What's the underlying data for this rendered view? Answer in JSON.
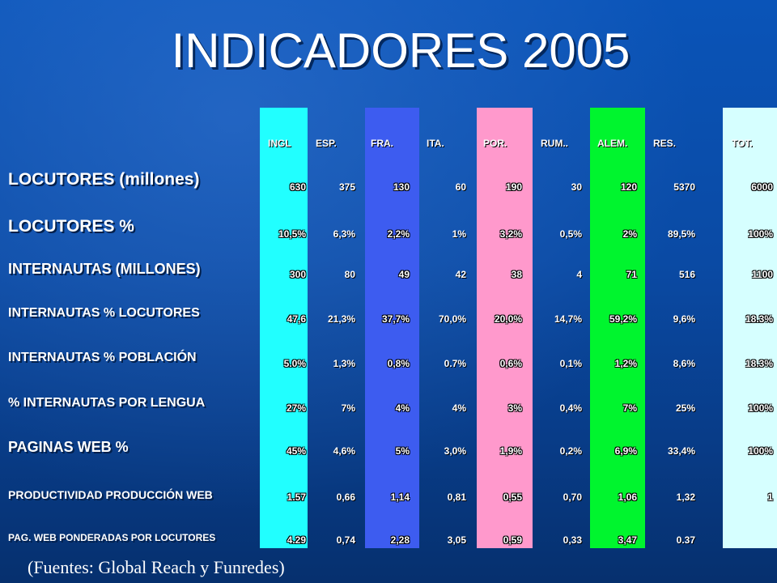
{
  "title": "INDICADORES 2005",
  "source": "(Fuentes: Global Reach y Funredes)",
  "colors": {
    "ingl": "#21ffff",
    "fra": "#3d5cf0",
    "por": "#ff99cc",
    "alem": "#00f52e",
    "tot": "#d6ffff"
  },
  "columns": [
    "INGL",
    "ESP.",
    "FRA.",
    "ITA.",
    "POR.",
    "RUM..",
    "ALEM.",
    "RES.",
    "TOT."
  ],
  "rows": [
    {
      "label": "LOCUTORES (millones)",
      "values": [
        "630",
        "375",
        "130",
        "60",
        "190",
        "30",
        "120",
        "5370",
        "6000"
      ]
    },
    {
      "label": "LOCUTORES %",
      "values": [
        "10,5%",
        "6,3%",
        "2,2%",
        "1%",
        "3,2%",
        "0,5%",
        "2%",
        "89,5%",
        "100%"
      ]
    },
    {
      "label": "INTERNAUTAS (MILLONES)",
      "values": [
        "300",
        "80",
        "49",
        "42",
        "38",
        "4",
        "71",
        "516",
        "1100"
      ]
    },
    {
      "label": "INTERNAUTAS % LOCUTORES",
      "values": [
        "47,6",
        "21,3%",
        "37,7%",
        "70,0%",
        "20,0%",
        "14,7%",
        "59,2%",
        "9,6%",
        "18.3%"
      ]
    },
    {
      "label": "INTERNAUTAS % POBLACIÓN",
      "values": [
        "5.0%",
        "1,3%",
        "0,8%",
        "0.7%",
        "0,6%",
        "0,1%",
        "1,2%",
        "8,6%",
        "18.3%"
      ]
    },
    {
      "label": "% INTERNAUTAS POR LENGUA",
      "values": [
        "27%",
        "7%",
        "4%",
        "4%",
        "3%",
        "0,4%",
        "7%",
        "25%",
        "100%"
      ]
    },
    {
      "label": "PAGINAS WEB %",
      "values": [
        "45%",
        "4,6%",
        "5%",
        "3,0%",
        "1,9%",
        "0,2%",
        "6,9%",
        "33,4%",
        "100%"
      ]
    },
    {
      "label": "PRODUCTIVIDAD PRODUCCIÓN WEB",
      "values": [
        "1.57",
        "0,66",
        "1,14",
        "0,81",
        "0,55",
        "0,70",
        "1,06",
        "1,32",
        "1"
      ]
    },
    {
      "label": "PAG. WEB PONDERADAS POR LOCUTORES",
      "values": [
        "4.29",
        "0,74",
        "2,28",
        "3,05",
        "0,59",
        "0,33",
        "3,47",
        "0.37",
        ""
      ]
    }
  ]
}
